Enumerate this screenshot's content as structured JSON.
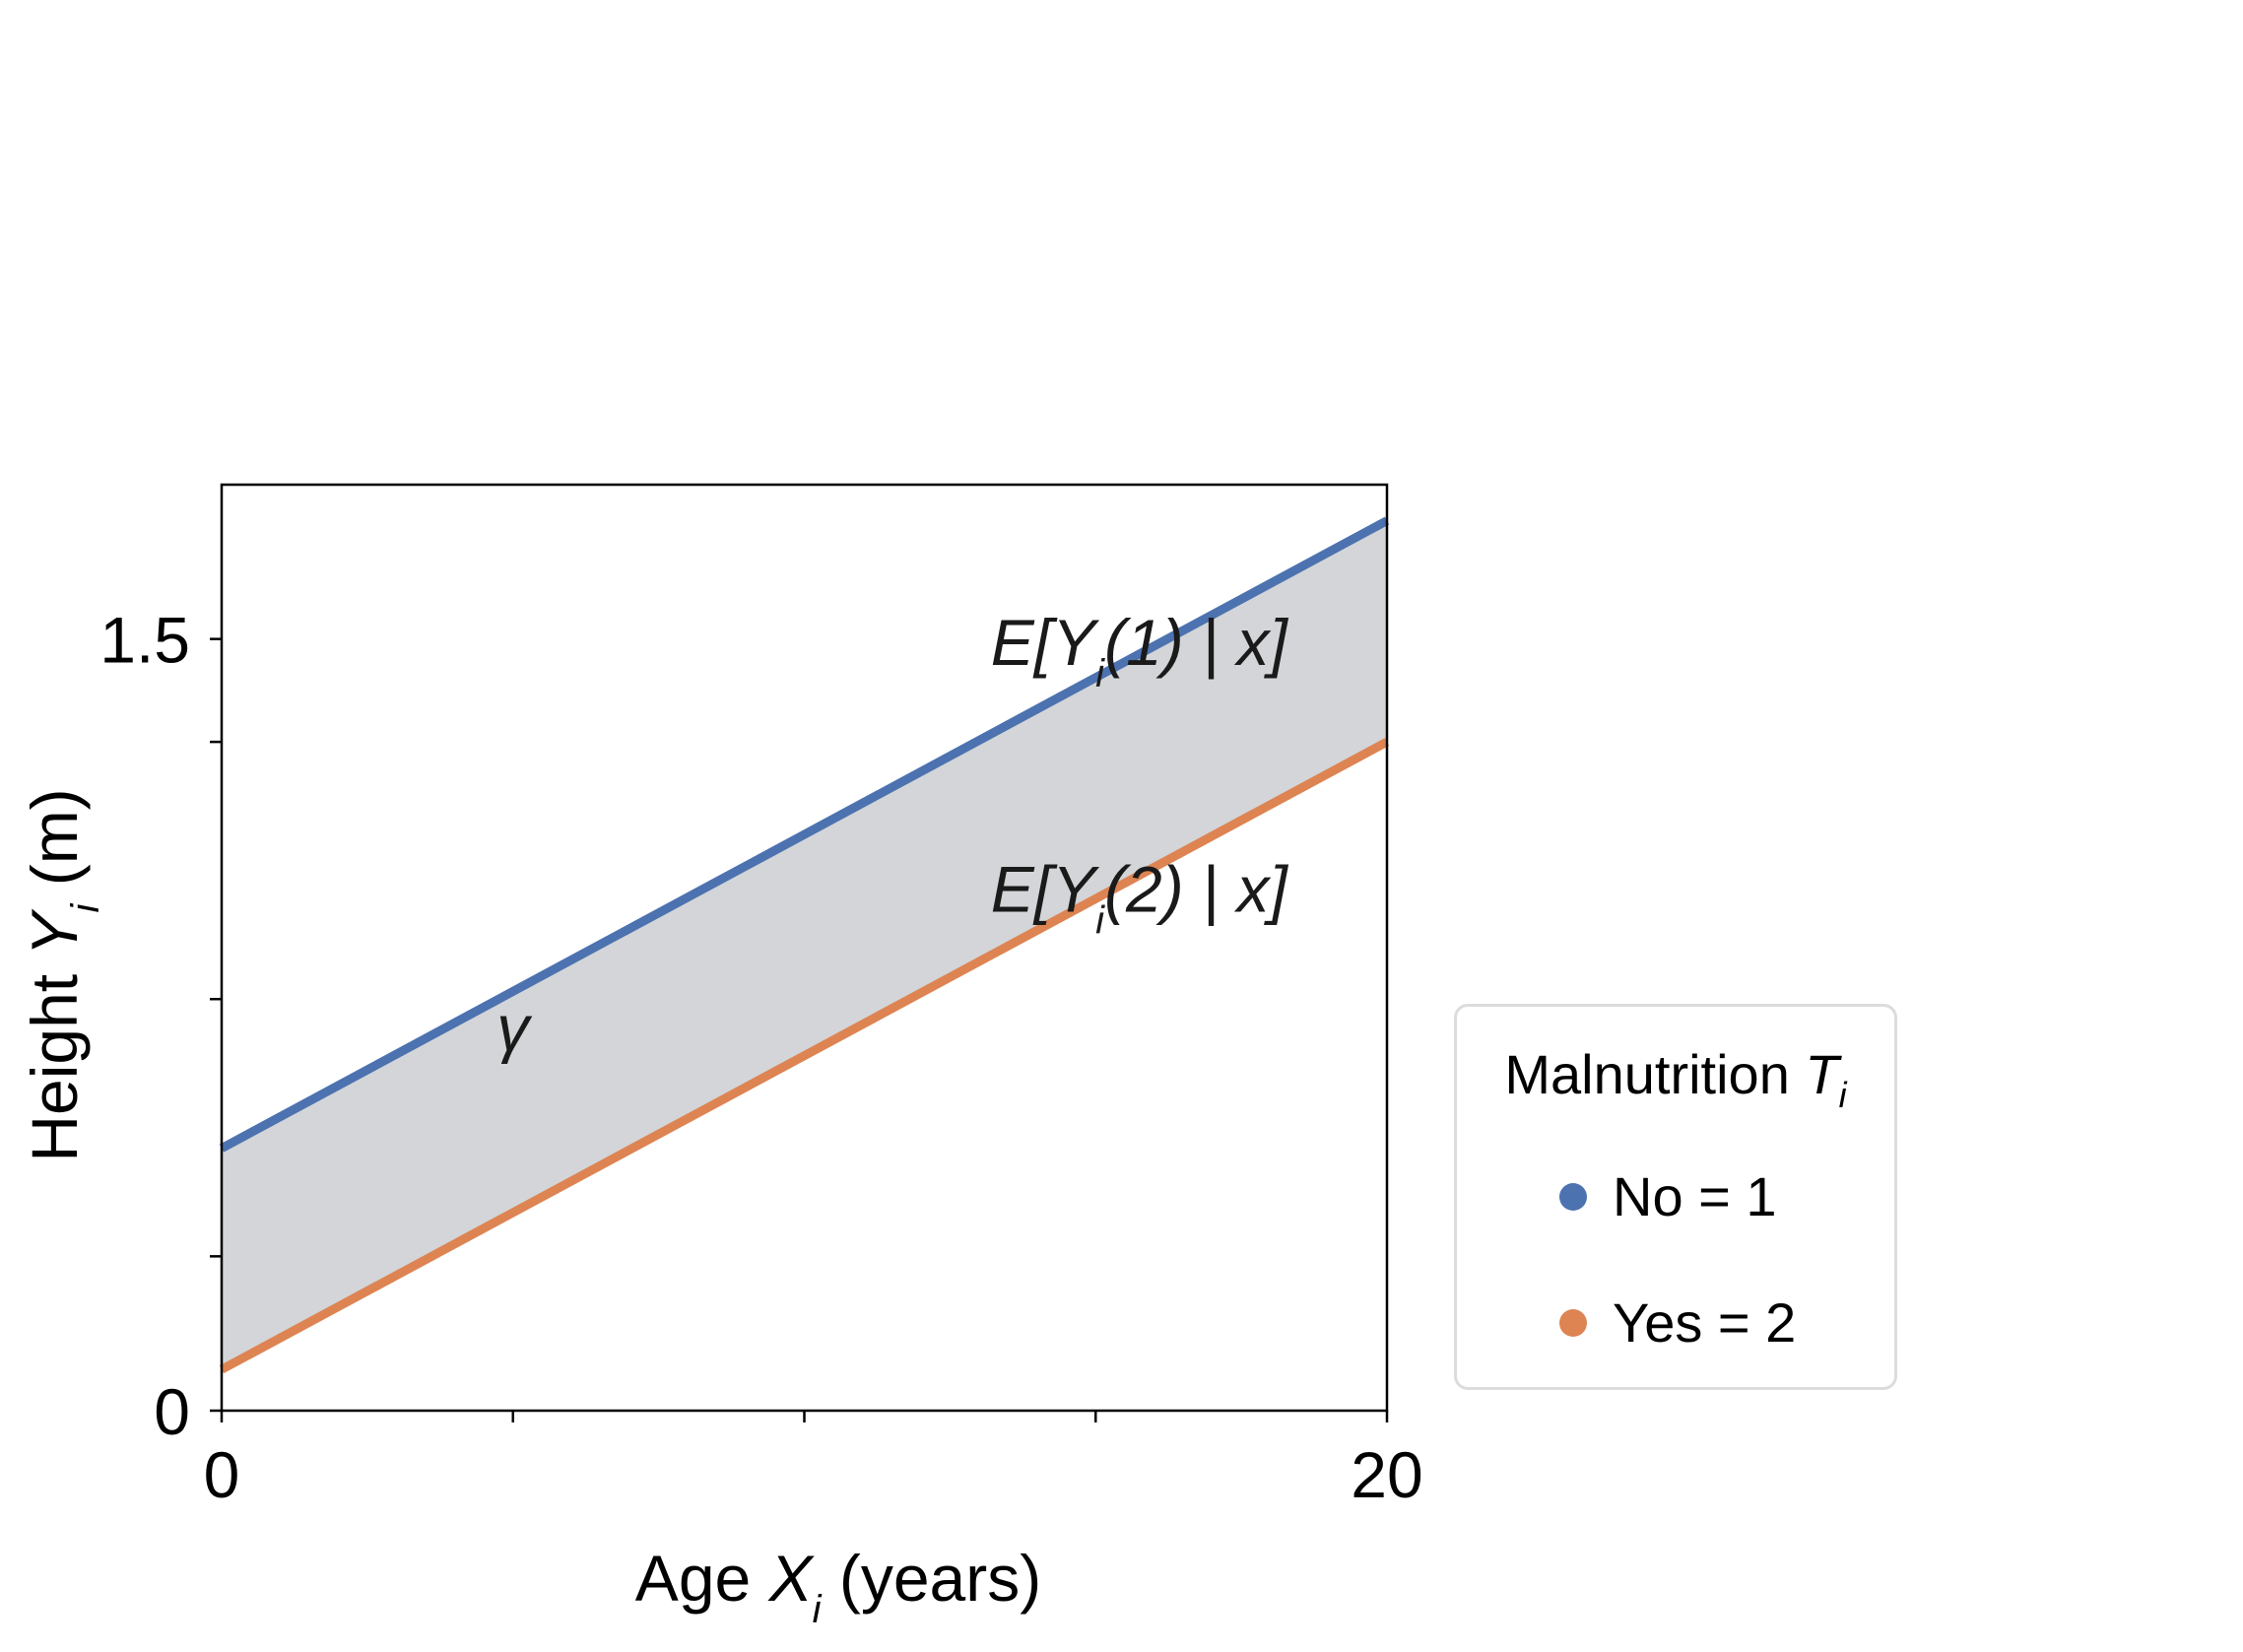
{
  "chart_data": {
    "type": "line",
    "xlabel": {
      "main": "Age ",
      "var": "X",
      "sub": "i",
      "rest": " (years)"
    },
    "ylabel": {
      "main": "Height ",
      "var": "Y",
      "sub": "i",
      "rest": " (m)"
    },
    "xlim": [
      0,
      20
    ],
    "ylim": [
      0,
      1.8
    ],
    "x_tick_labels": [
      {
        "value": 0,
        "label": "0"
      },
      {
        "value": 20,
        "label": "20"
      }
    ],
    "x_minor_ticks": [
      0,
      5,
      10,
      15,
      20
    ],
    "y_tick_labels": [
      {
        "value": 0,
        "label": "0"
      },
      {
        "value": 1.5,
        "label": "1.5"
      }
    ],
    "y_minor_ticks": [
      0.3,
      0.8,
      1.3
    ],
    "grid": false,
    "series": [
      {
        "name": "No = 1",
        "color": "#4c72b0",
        "x": [
          0,
          20
        ],
        "y": [
          0.51,
          1.73
        ]
      },
      {
        "name": "Yes = 2",
        "color": "#dd8452",
        "x": [
          0,
          20
        ],
        "y": [
          0.08,
          1.3
        ]
      }
    ],
    "shaded_region": {
      "between": [
        "No = 1",
        "Yes = 2"
      ],
      "color": "#d3d5d8"
    },
    "annotations": [
      {
        "pre": "E[Y",
        "sub": "i",
        "post": "(1) | x]",
        "x": 13.2,
        "y": 1.45,
        "color": "#1a1a1a"
      },
      {
        "pre": "E[Y",
        "sub": "i",
        "post": "(2) | x]",
        "x": 13.2,
        "y": 0.97,
        "color": "#333333"
      },
      {
        "text": "γ",
        "x": 5.0,
        "y": 0.7
      }
    ],
    "legend": {
      "title_main": "Malnutrition ",
      "title_var": "T",
      "title_sub": "i",
      "placement": "right",
      "items": [
        {
          "label": "No = 1",
          "color": "#4c72b0"
        },
        {
          "label": "Yes = 2",
          "color": "#dd8452"
        }
      ]
    }
  }
}
